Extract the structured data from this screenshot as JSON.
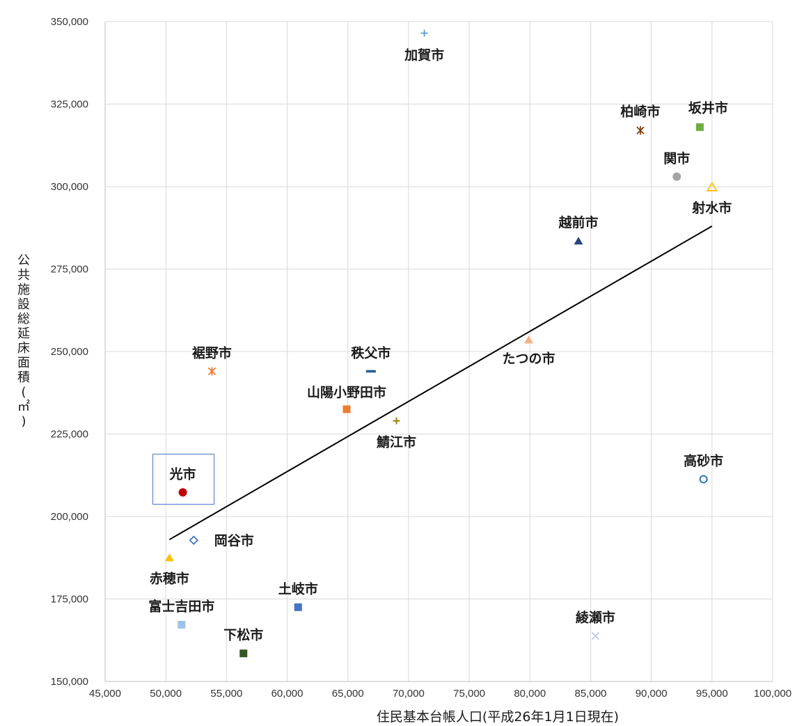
{
  "chart_data": {
    "type": "scatter",
    "xlabel": "住民基本台帳人口(平成26年1月1日現在)",
    "ylabel": "公共施設総延床面積(㎡)",
    "xlim": [
      45000,
      100000
    ],
    "ylim": [
      150000,
      350000
    ],
    "x_ticks": [
      "45,000",
      "50,000",
      "55,000",
      "60,000",
      "65,000",
      "70,000",
      "75,000",
      "80,000",
      "85,000",
      "90,000",
      "95,000",
      "100,000"
    ],
    "y_ticks": [
      "150,000",
      "175,000",
      "200,000",
      "225,000",
      "250,000",
      "275,000",
      "300,000",
      "325,000",
      "350,000"
    ],
    "grid": true,
    "trendline": {
      "x": [
        50300,
        95000
      ],
      "y": [
        193000,
        288000
      ],
      "color": "#000000"
    },
    "points": [
      {
        "label": "加賀市",
        "x": 71300,
        "y": 346500,
        "marker": "plus",
        "color": "#5b9bd5"
      },
      {
        "label": "柏崎市",
        "x": 89100,
        "y": 317000,
        "marker": "star",
        "color": "#843c0c"
      },
      {
        "label": "坂井市",
        "x": 94000,
        "y": 318000,
        "marker": "square",
        "color": "#70ad47"
      },
      {
        "label": "関市",
        "x": 92100,
        "y": 303000,
        "marker": "circle",
        "color": "#a5a5a5"
      },
      {
        "label": "射水市",
        "x": 95000,
        "y": 299800,
        "marker": "triangle-open",
        "color": "#ffc000"
      },
      {
        "label": "越前市",
        "x": 84000,
        "y": 283500,
        "marker": "triangle",
        "color": "#264478"
      },
      {
        "label": "たつの市",
        "x": 79900,
        "y": 253500,
        "marker": "triangle",
        "color": "#f4b183"
      },
      {
        "label": "秩父市",
        "x": 66900,
        "y": 244000,
        "marker": "dash",
        "color": "#255e91"
      },
      {
        "label": "裾野市",
        "x": 53800,
        "y": 244000,
        "marker": "star",
        "color": "#ed7d31"
      },
      {
        "label": "山陽小野田市",
        "x": 64900,
        "y": 232500,
        "marker": "square",
        "color": "#ed7d31"
      },
      {
        "label": "鯖江市",
        "x": 69000,
        "y": 229000,
        "marker": "plus",
        "color": "#997300"
      },
      {
        "label": "高砂市",
        "x": 94300,
        "y": 211300,
        "marker": "circle-open",
        "color": "#2e75b6"
      },
      {
        "label": "光市",
        "x": 51400,
        "y": 207300,
        "marker": "circle",
        "color": "#c00000",
        "highlight": true
      },
      {
        "label": "岡谷市",
        "x": 52300,
        "y": 192800,
        "marker": "diamond-open",
        "color": "#4472c4"
      },
      {
        "label": "赤穂市",
        "x": 50300,
        "y": 187500,
        "marker": "triangle",
        "color": "#ffc000"
      },
      {
        "label": "富士吉田市",
        "x": 51300,
        "y": 167200,
        "marker": "square",
        "color": "#9dc3e6"
      },
      {
        "label": "土岐市",
        "x": 60900,
        "y": 172500,
        "marker": "square",
        "color": "#4472c4"
      },
      {
        "label": "下松市",
        "x": 56400,
        "y": 158500,
        "marker": "square",
        "color": "#375623"
      },
      {
        "label": "綾瀬市",
        "x": 85400,
        "y": 163800,
        "marker": "x",
        "color": "#b4c7e7"
      }
    ]
  }
}
